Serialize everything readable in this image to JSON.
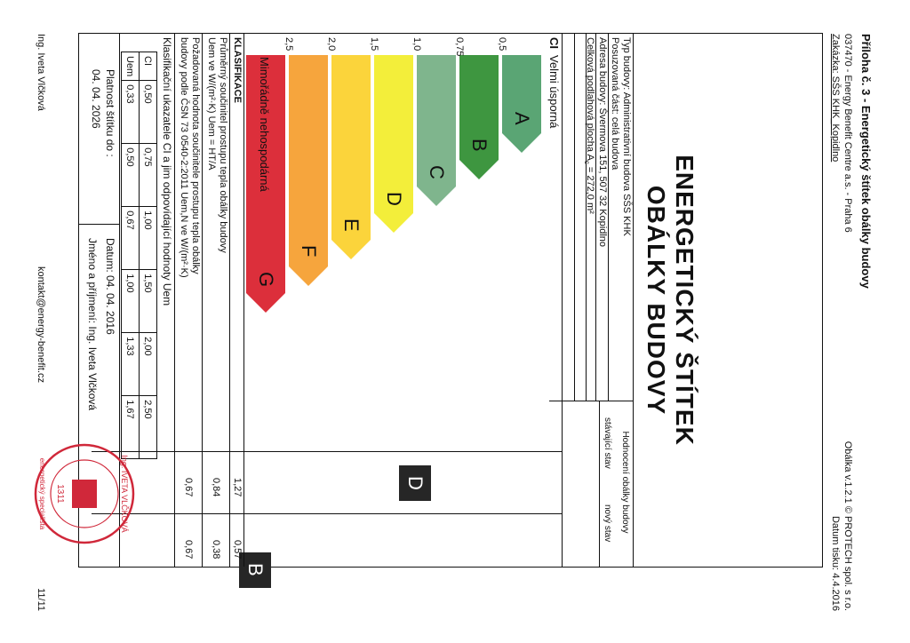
{
  "header": {
    "title": "Příloha č. 3 - Energetický štítek obálky budovy",
    "line1": "037470 - Energy Benefit Centre a.s. - Praha 6",
    "line2": "Zakázka: SŠS KHK_Kopidlno",
    "right1": "Obálka v.1.2.1 © PROTECH spol. s r.o.",
    "right2": "Datum tisku: 4.4.2016"
  },
  "label": {
    "title1": "ENERGETICKÝ ŠTÍTEK",
    "title2": "OBÁLKY BUDOVY"
  },
  "building": {
    "type": "Typ budovy: Administrativní budova SŠS KHK",
    "part": "Posuzovaná část: celá budova",
    "address": "Adresa budovy: Švermova 151, 507 32 Kopidlno",
    "area_prefix": "Celková podlahová plocha A",
    "area_sub": "c",
    "area_suffix": " = 272,0 m²"
  },
  "evaluation": {
    "heading": "Hodnocení obálky budovy",
    "col_current": "stávající stav",
    "col_new": "nový stav",
    "current_class": "D",
    "new_class": "B"
  },
  "scale": {
    "ci_label": "CI",
    "top_label": "Velmi úsporná",
    "bottom_label": "Mimořádně nehospodárná",
    "ticks": [
      "0,5",
      "0,75",
      "1,0",
      "1,5",
      "2,0",
      "2,5"
    ]
  },
  "bars": [
    {
      "letter": "A",
      "color": "#5aa574"
    },
    {
      "letter": "B",
      "color": "#3e9640"
    },
    {
      "letter": "C",
      "color": "#7fb58d"
    },
    {
      "letter": "D",
      "color": "#f3ee3a"
    },
    {
      "letter": "E",
      "color": "#fbd43b"
    },
    {
      "letter": "F",
      "color": "#f6a53d"
    },
    {
      "letter": "G",
      "color": "#dc2f3b"
    }
  ],
  "klasifikace": {
    "heading": "KLASIFIKACE",
    "row1_label": "Průměrný součinitel prostupu tepla obálky budovy",
    "row1_formula": "Uem ve W/(m²·K)     Uem = HT/A",
    "row1_current": "0,84",
    "row1_new": "0,38",
    "row2_label": "Požadovaná hodnota součinitele prostupu tepla obálky",
    "row2_formula": "budovy podle ČSN 73 0540-2:2011     Uem,N ve W/(m²·K)",
    "row2_current": "0,67",
    "row2_new": "0,67",
    "ci_current": "1,27",
    "ci_new": "0,57"
  },
  "class_table": {
    "heading": "Klasifikační ukazatele CI a jim odpovídající hodnoty Uem",
    "ci_label": "CI",
    "uem_label": "Uem",
    "ci": [
      "0,50",
      "0,75",
      "1,00",
      "1,50",
      "2,00",
      "2,50"
    ],
    "uem": [
      "0,33",
      "0,50",
      "0,67",
      "1,00",
      "1,33",
      "1,67"
    ]
  },
  "footer": {
    "validity_label": "Platnost štítku do :",
    "validity_date": "04. 04. 2026",
    "date": "Datum: 04. 04. 2016",
    "name": "Jméno a příjmení: Ing. Iveta Vlčková",
    "author": "Ing. Iveta Vlčková",
    "contact": "kontakt@energy-benefit.cz",
    "page": "11/11"
  },
  "stamp": {
    "name": "Ing. IVETA VLČKOVÁ",
    "ring": "energetický specialista",
    "number": "1311"
  },
  "colors": {
    "marker": "#262626",
    "stamp": "#d0283a"
  }
}
